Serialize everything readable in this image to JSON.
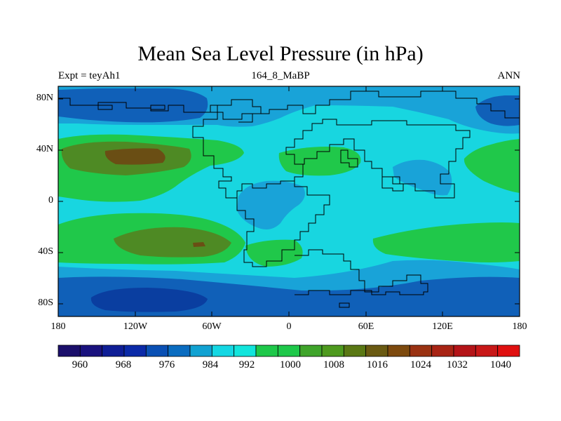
{
  "title": "Mean Sea Level Pressure (in hPa)",
  "subtitle_left": "Expt = teyAh1",
  "subtitle_center": "164_8_MaBP",
  "subtitle_right": "ANN",
  "lat_labels": [
    "80N",
    "40N",
    "0",
    "40S",
    "80S"
  ],
  "lon_labels": [
    "180",
    "120W",
    "60W",
    "0",
    "60E",
    "120E",
    "180"
  ],
  "colorbar_labels": [
    "960",
    "968",
    "976",
    "984",
    "992",
    "1000",
    "1008",
    "1016",
    "1024",
    "1032",
    "1040"
  ],
  "colorbar_colors": [
    "#1b0f6b",
    "#1a127e",
    "#0f1e96",
    "#0b2aa8",
    "#0a50b4",
    "#0a6cc0",
    "#11a2d2",
    "#14d7e3",
    "#12e5dc",
    "#1ec84a",
    "#1ec84a",
    "#3fa42a",
    "#4e9a1e",
    "#5a7814",
    "#6a5a12",
    "#7d4a0e",
    "#9a3212",
    "#a82414",
    "#b41418",
    "#c81818",
    "#e01010"
  ],
  "map_colors": {
    "ocean_low_deep": "#0a3ea0",
    "low": "#1060b8",
    "mid_low": "#19a3d8",
    "mid": "#18d6e0",
    "high": "#20c84a",
    "very_high": "#4e8a24",
    "extreme": "#6a4e14"
  }
}
